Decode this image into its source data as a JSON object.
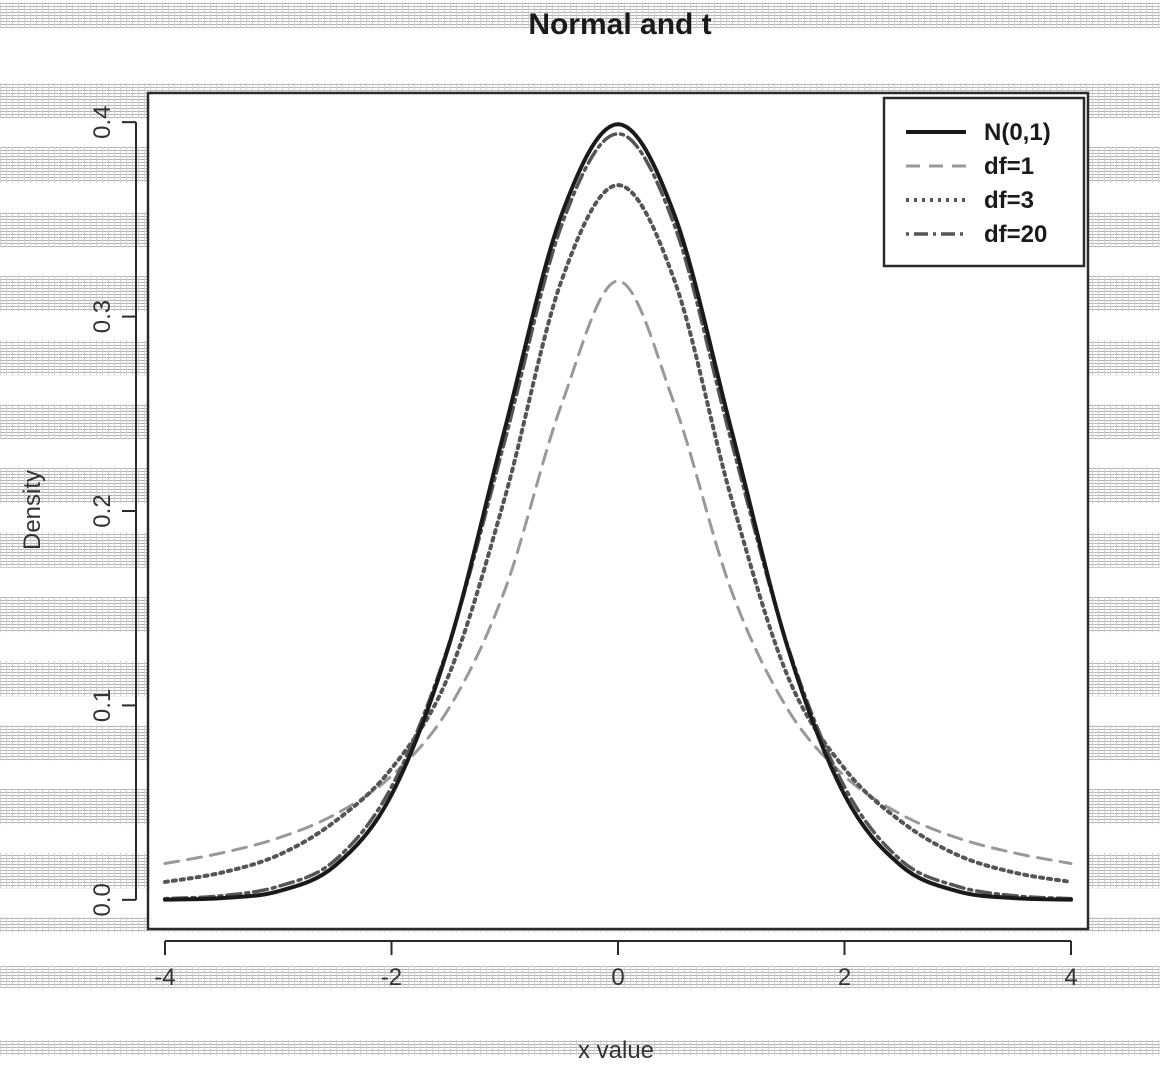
{
  "chart_data": {
    "type": "line",
    "title": "Normal and t",
    "xlabel": "x value",
    "ylabel": "Density",
    "xlim": [
      -4.15,
      4.15
    ],
    "ylim": [
      -0.015,
      0.415
    ],
    "xticks": [
      -4,
      -2,
      0,
      2,
      4
    ],
    "xtick_labels": [
      "-4",
      "-2",
      "0",
      "2",
      "4"
    ],
    "yticks": [
      0.0,
      0.1,
      0.2,
      0.3,
      0.4
    ],
    "ytick_labels": [
      "0.0",
      "0.1",
      "0.2",
      "0.3",
      "0.4"
    ],
    "legend_position": "top-right",
    "x": [
      -4.0,
      -3.5,
      -3.0,
      -2.5,
      -2.0,
      -1.5,
      -1.0,
      -0.5,
      0.0,
      0.5,
      1.0,
      1.5,
      2.0,
      2.5,
      3.0,
      3.5,
      4.0
    ],
    "series": [
      {
        "name": "N(0,1)",
        "style": "solid",
        "color": "#1a1a1a",
        "values": [
          0.0001,
          0.0009,
          0.0044,
          0.0175,
          0.054,
          0.1295,
          0.242,
          0.3521,
          0.3989,
          0.3521,
          0.242,
          0.1295,
          0.054,
          0.0175,
          0.0044,
          0.0009,
          0.0001
        ]
      },
      {
        "name": "df=1",
        "style": "dashed",
        "color": "#999999",
        "values": [
          0.0187,
          0.0241,
          0.0318,
          0.0439,
          0.0637,
          0.0979,
          0.1592,
          0.2546,
          0.3183,
          0.2546,
          0.1592,
          0.0979,
          0.0637,
          0.0439,
          0.0318,
          0.0241,
          0.0187
        ]
      },
      {
        "name": "df=3",
        "style": "dotted",
        "color": "#555555",
        "values": [
          0.0092,
          0.014,
          0.023,
          0.0403,
          0.0675,
          0.1148,
          0.2067,
          0.3183,
          0.3676,
          0.3183,
          0.2067,
          0.1148,
          0.0675,
          0.0403,
          0.023,
          0.014,
          0.0092
        ]
      },
      {
        "name": "df=20",
        "style": "dotdash",
        "color": "#555555",
        "values": [
          0.0006,
          0.0021,
          0.0069,
          0.0203,
          0.0581,
          0.1303,
          0.236,
          0.3466,
          0.394,
          0.3466,
          0.236,
          0.1303,
          0.0581,
          0.0203,
          0.0069,
          0.0021,
          0.0006
        ]
      }
    ]
  }
}
